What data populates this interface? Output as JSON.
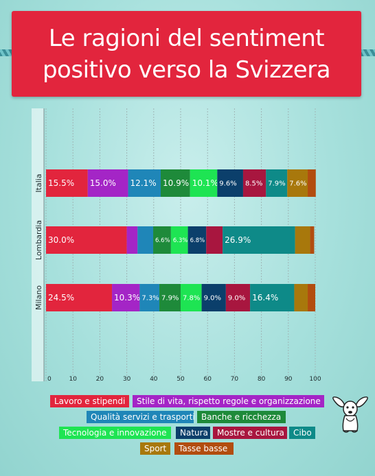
{
  "title": "Le ragioni del sentiment positivo verso la Svizzera",
  "colors": {
    "Lavoro e stipendi": "#e2253d",
    "Stile di vita, rispetto regole e organizzazione": "#a425c6",
    "Qualità servizi e trasporti": "#1f86b8",
    "Banche e ricchezza": "#1e8a3a",
    "Tecnologia e innovazione": "#1ee453",
    "Natura": "#0b3f6b",
    "Mostre e cultura": "#a8163f",
    "Cibo": "#0e8a88",
    "Sport": "#a8780c",
    "Tasse basse": "#b24d0f"
  },
  "chart_data": {
    "type": "bar",
    "orientation": "horizontal",
    "stacked": true,
    "title": "Le ragioni del sentiment positivo verso la Svizzera",
    "categories": [
      "Italia",
      "Lombardia",
      "Milano"
    ],
    "xlim": [
      0,
      100
    ],
    "xticks": [
      0,
      10,
      20,
      30,
      40,
      50,
      60,
      70,
      80,
      90,
      100
    ],
    "grid": true,
    "legend": "bottom",
    "series": [
      {
        "name": "Lavoro e stipendi",
        "values": [
          15.5,
          30.0,
          24.5
        ],
        "labels": [
          "15.5%",
          "30.0%",
          "24.5%"
        ]
      },
      {
        "name": "Stile di vita, rispetto regole e organizzazione",
        "values": [
          15.0,
          4.0,
          10.3
        ],
        "labels": [
          "15.0%",
          "",
          "10.3%"
        ]
      },
      {
        "name": "Qualità servizi e trasporti",
        "values": [
          12.1,
          5.8,
          7.3
        ],
        "labels": [
          "12.1%",
          "",
          "7.3%"
        ]
      },
      {
        "name": "Banche e ricchezza",
        "values": [
          10.9,
          6.6,
          7.9
        ],
        "labels": [
          "10.9%",
          "6.6%",
          "7.9%"
        ]
      },
      {
        "name": "Tecnologia e innovazione",
        "values": [
          10.1,
          6.3,
          7.8
        ],
        "labels": [
          "10.1%",
          "6.3%",
          "7.8%"
        ]
      },
      {
        "name": "Natura",
        "values": [
          9.6,
          6.8,
          9.0
        ],
        "labels": [
          "9.6%",
          "6.8%",
          "9.0%"
        ]
      },
      {
        "name": "Mostre e cultura",
        "values": [
          8.5,
          6.1,
          9.0
        ],
        "labels": [
          "8.5%",
          "",
          "9.0%"
        ]
      },
      {
        "name": "Cibo",
        "values": [
          7.9,
          26.9,
          16.4
        ],
        "labels": [
          "7.9%",
          "26.9%",
          "16.4%"
        ]
      },
      {
        "name": "Sport",
        "values": [
          7.6,
          5.6,
          5.0
        ],
        "labels": [
          "7.6%",
          "",
          ""
        ]
      },
      {
        "name": "Tasse basse",
        "values": [
          3.0,
          1.5,
          2.8
        ],
        "labels": [
          "",
          "",
          ""
        ]
      }
    ]
  }
}
